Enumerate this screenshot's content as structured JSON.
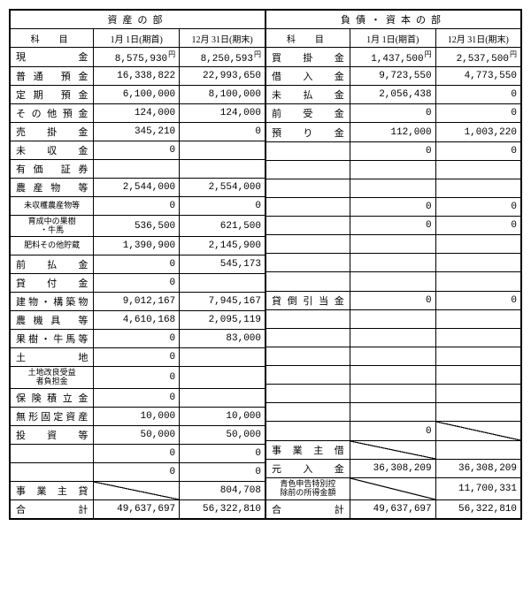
{
  "assets": {
    "title": "資産の部",
    "cols": {
      "item": "科　目",
      "c1": "1月 1日(期首)",
      "c2": "12月 31日(期末)"
    },
    "rows": [
      {
        "label": "現　金",
        "v1": "8,575,930",
        "v2": "8,250,593",
        "yen": true
      },
      {
        "label": "普通 預金",
        "v1": "16,338,822",
        "v2": "22,993,650"
      },
      {
        "label": "定期 預金",
        "v1": "6,100,000",
        "v2": "8,100,000"
      },
      {
        "label": "その他預金",
        "v1": "124,000",
        "v2": "124,000"
      },
      {
        "label": "売 掛 金",
        "v1": "345,210",
        "v2": "0"
      },
      {
        "label": "未 収 金",
        "v1": "0",
        "v2": ""
      },
      {
        "label": "有価 証券",
        "v1": "",
        "v2": ""
      },
      {
        "label": "農産物 等",
        "v1": "2,544,000",
        "v2": "2,554,000"
      },
      {
        "label": "未収穫農産物等",
        "v1": "0",
        "v2": "0",
        "small": true
      },
      {
        "label": "育成中の果樹<br>・牛馬",
        "v1": "536,500",
        "v2": "621,500",
        "small": true
      },
      {
        "label": "肥料その他貯蔵",
        "v1": "1,390,900",
        "v2": "2,145,900",
        "small": true
      },
      {
        "label": "前 払 金",
        "v1": "0",
        "v2": "545,173"
      },
      {
        "label": "貸 付 金",
        "v1": "0",
        "v2": ""
      },
      {
        "label": "建物・構築物",
        "v1": "9,012,167",
        "v2": "7,945,167"
      },
      {
        "label": "農機具 等",
        "v1": "4,610,168",
        "v2": "2,095,119"
      },
      {
        "label": "果樹・牛馬等",
        "v1": "0",
        "v2": "83,000"
      },
      {
        "label": "土　地",
        "v1": "0",
        "v2": ""
      },
      {
        "label": "土地改良受益<br>者負担金",
        "v1": "0",
        "v2": "",
        "small": true
      },
      {
        "label": "保険積立金",
        "v1": "0",
        "v2": ""
      },
      {
        "label": "無形固定資産",
        "v1": "10,000",
        "v2": "10,000"
      },
      {
        "label": "投資等",
        "v1": "50,000",
        "v2": "50,000"
      },
      {
        "label": "",
        "v1": "0",
        "v2": "0"
      },
      {
        "label": "",
        "v1": "0",
        "v2": "0"
      },
      {
        "label": "事業主貸",
        "v1": "strike",
        "v2": "804,708"
      },
      {
        "label": "合　計",
        "v1": "49,637,697",
        "v2": "56,322,810"
      }
    ]
  },
  "liab": {
    "title": "負債・資本の部",
    "cols": {
      "item": "科　目",
      "c1": "1月 1日(期首)",
      "c2": "12月 31日(期末)"
    },
    "rows": [
      {
        "label": "買 掛 金",
        "v1": "1,437,500",
        "v2": "2,537,500",
        "yen": true
      },
      {
        "label": "借 入 金",
        "v1": "9,723,550",
        "v2": "4,773,550"
      },
      {
        "label": "未 払 金",
        "v1": "2,056,438",
        "v2": "0"
      },
      {
        "label": "前 受 金",
        "v1": "0",
        "v2": "0"
      },
      {
        "label": "預 り 金",
        "v1": "112,000",
        "v2": "1,003,220"
      },
      {
        "label": "",
        "v1": "0",
        "v2": "0"
      },
      {
        "label": "",
        "v1": "",
        "v2": ""
      },
      {
        "label": "",
        "v1": "",
        "v2": ""
      },
      {
        "label": "",
        "v1": "0",
        "v2": "0"
      },
      {
        "label": "",
        "v1": "0",
        "v2": "0"
      },
      {
        "label": "",
        "v1": "",
        "v2": ""
      },
      {
        "label": "",
        "v1": "",
        "v2": ""
      },
      {
        "label": "",
        "v1": "",
        "v2": ""
      },
      {
        "label": "貸倒引当金",
        "v1": "0",
        "v2": "0"
      },
      {
        "label": "",
        "v1": "",
        "v2": ""
      },
      {
        "label": "",
        "v1": "",
        "v2": ""
      },
      {
        "label": "",
        "v1": "",
        "v2": ""
      },
      {
        "label": "",
        "v1": "",
        "v2": ""
      },
      {
        "label": "",
        "v1": "",
        "v2": ""
      },
      {
        "label": "",
        "v1": "",
        "v2": ""
      },
      {
        "label": "",
        "v1": "0",
        "v2": "strike"
      },
      {
        "label": "事業主借",
        "v1": "strike",
        "v2": ""
      },
      {
        "label": "元 入 金",
        "v1": "36,308,209",
        "v2": "36,308,209"
      },
      {
        "label": "青色申告特別控<br>除前の所得金額",
        "v1": "strike",
        "v2": "11,700,331",
        "small": true
      },
      {
        "label": "合　計",
        "v1": "49,637,697",
        "v2": "56,322,810"
      }
    ]
  },
  "widths": {
    "label": 95,
    "num": 97
  }
}
